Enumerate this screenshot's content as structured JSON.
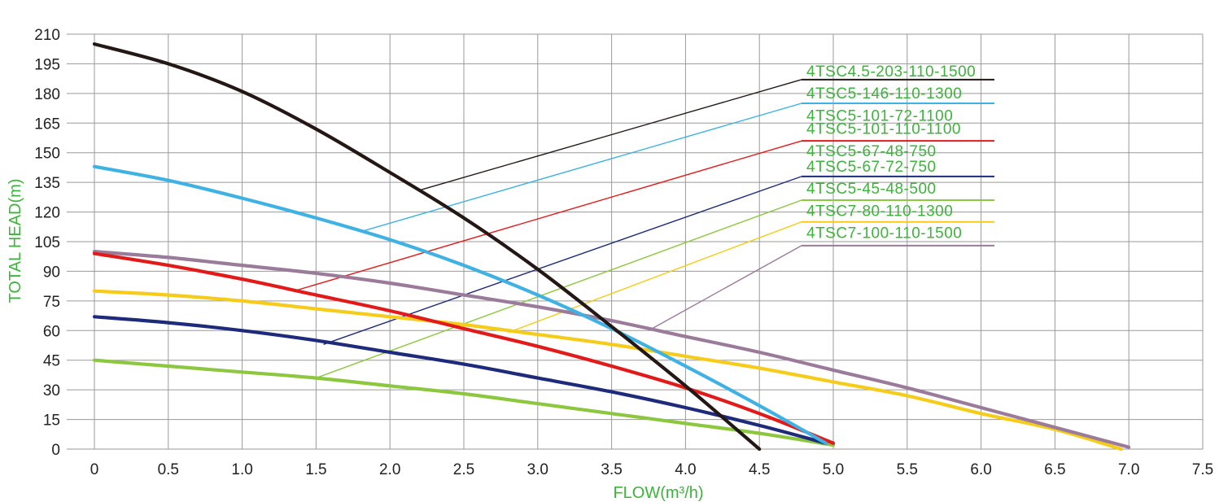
{
  "chart_data": {
    "type": "line",
    "xlabel": "FLOW(m³/h)",
    "ylabel": "TOTAL HEAD(m)",
    "xlim": [
      0,
      7.5
    ],
    "ylim": [
      0,
      210
    ],
    "xticks": [
      "0",
      "0.5",
      "1.0",
      "1.5",
      "2.0",
      "2.5",
      "3.0",
      "3.5",
      "4.0",
      "4.5",
      "5.0",
      "5.5",
      "6.0",
      "6.5",
      "7.0",
      "7.5"
    ],
    "yticks": [
      "0",
      "15",
      "30",
      "45",
      "60",
      "75",
      "90",
      "105",
      "120",
      "135",
      "150",
      "165",
      "180",
      "195",
      "210"
    ],
    "grid": true,
    "legend_placement": "top-right",
    "series": [
      {
        "name": "4TSC4.5-203-110-1500",
        "color": "#231815",
        "points": [
          [
            0,
            205
          ],
          [
            0.5,
            195
          ],
          [
            1.0,
            181
          ],
          [
            1.5,
            162
          ],
          [
            2.0,
            140
          ],
          [
            2.5,
            117
          ],
          [
            3.0,
            91
          ],
          [
            3.5,
            62
          ],
          [
            4.0,
            32
          ],
          [
            4.5,
            0
          ]
        ],
        "label_anchor": [
          2.2,
          131
        ]
      },
      {
        "name": "4TSC5-146-110-1300",
        "color": "#3fb2e3",
        "points": [
          [
            0,
            143
          ],
          [
            0.5,
            136
          ],
          [
            1.0,
            127
          ],
          [
            1.5,
            117
          ],
          [
            2.0,
            106
          ],
          [
            2.5,
            93
          ],
          [
            3.0,
            78
          ],
          [
            3.5,
            61
          ],
          [
            4.0,
            42
          ],
          [
            4.5,
            22
          ],
          [
            4.95,
            3
          ]
        ],
        "label_anchor": [
          1.8,
          110
        ]
      },
      {
        "name": "4TSC5-101-72-1100",
        "color": "#e21a1a",
        "points": [
          [
            0,
            99
          ],
          [
            0.5,
            93
          ],
          [
            1.0,
            86
          ],
          [
            1.5,
            78
          ],
          [
            2.0,
            70
          ],
          [
            2.5,
            61
          ],
          [
            3.0,
            52
          ],
          [
            3.5,
            42
          ],
          [
            4.0,
            31
          ],
          [
            4.5,
            18
          ],
          [
            5.0,
            3
          ]
        ],
        "label_anchor": [
          1.35,
          80
        ]
      },
      {
        "name": "4TSC5-101-110-1100",
        "color": "#e21a1a",
        "points": [],
        "label_anchor": [
          1.35,
          80
        ]
      },
      {
        "name": "4TSC5-67-48-750",
        "color": "#1e2a7a",
        "points": [
          [
            0,
            67
          ],
          [
            0.5,
            64
          ],
          [
            1.0,
            60
          ],
          [
            1.5,
            55
          ],
          [
            2.0,
            49
          ],
          [
            2.5,
            43
          ],
          [
            3.0,
            36
          ],
          [
            3.5,
            29
          ],
          [
            4.0,
            21
          ],
          [
            4.5,
            12
          ],
          [
            4.95,
            3
          ]
        ],
        "label_anchor": [
          1.55,
          53
        ]
      },
      {
        "name": "4TSC5-67-72-750",
        "color": "#1e2a7a",
        "points": [],
        "label_anchor": [
          1.55,
          53
        ]
      },
      {
        "name": "4TSC5-45-48-500",
        "color": "#8dc63f",
        "points": [
          [
            0,
            45
          ],
          [
            0.5,
            42
          ],
          [
            1.0,
            39
          ],
          [
            1.5,
            36
          ],
          [
            2.0,
            32
          ],
          [
            2.5,
            28
          ],
          [
            3.0,
            23
          ],
          [
            3.5,
            18
          ],
          [
            4.0,
            13
          ],
          [
            4.5,
            8
          ],
          [
            5.0,
            2
          ]
        ],
        "label_anchor": [
          1.5,
          36
        ]
      },
      {
        "name": "4TSC7-80-110-1300",
        "color": "#f5cc1a",
        "points": [
          [
            0,
            80
          ],
          [
            0.5,
            78
          ],
          [
            1.0,
            75
          ],
          [
            1.5,
            71
          ],
          [
            2.0,
            67
          ],
          [
            2.5,
            63
          ],
          [
            3.0,
            58
          ],
          [
            3.5,
            53
          ],
          [
            4.0,
            47
          ],
          [
            4.5,
            41
          ],
          [
            5.0,
            34
          ],
          [
            5.5,
            27
          ],
          [
            6.0,
            18
          ],
          [
            6.5,
            10
          ],
          [
            6.95,
            0
          ]
        ],
        "label_anchor": [
          2.8,
          59
        ]
      },
      {
        "name": "4TSC7-100-110-1500",
        "color": "#9b7b9a",
        "points": [
          [
            0,
            100
          ],
          [
            0.5,
            97
          ],
          [
            1.0,
            93
          ],
          [
            1.5,
            89
          ],
          [
            2.0,
            84
          ],
          [
            2.5,
            78
          ],
          [
            3.0,
            72
          ],
          [
            3.5,
            65
          ],
          [
            4.0,
            57
          ],
          [
            4.5,
            49
          ],
          [
            5.0,
            40
          ],
          [
            5.5,
            31
          ],
          [
            6.0,
            21
          ],
          [
            6.5,
            11
          ],
          [
            7.0,
            1
          ]
        ],
        "label_anchor": [
          3.75,
          60
        ]
      }
    ],
    "legend": [
      {
        "label": "4TSC4.5-203-110-1500",
        "line_color": "#231815",
        "line_value": 187
      },
      {
        "label": "4TSC5-146-110-1300",
        "line_color": "#3fb2e3",
        "line_value": 175
      },
      {
        "label": "4TSC5-101-72-1100",
        "line_color": null,
        "line_value": null
      },
      {
        "label": "4TSC5-101-110-1100",
        "line_color": "#e21a1a",
        "line_value": 156
      },
      {
        "label": "4TSC5-67-48-750",
        "line_color": null,
        "line_value": null
      },
      {
        "label": "4TSC5-67-72-750",
        "line_color": "#1e2a7a",
        "line_value": 138
      },
      {
        "label": "4TSC5-45-48-500",
        "line_color": "#8dc63f",
        "line_value": 126
      },
      {
        "label": "4TSC7-80-110-1300",
        "line_color": "#f5cc1a",
        "line_value": 115
      },
      {
        "label": "4TSC7-100-110-1500",
        "line_color": "#9b7b9a",
        "line_value": 103
      }
    ]
  }
}
